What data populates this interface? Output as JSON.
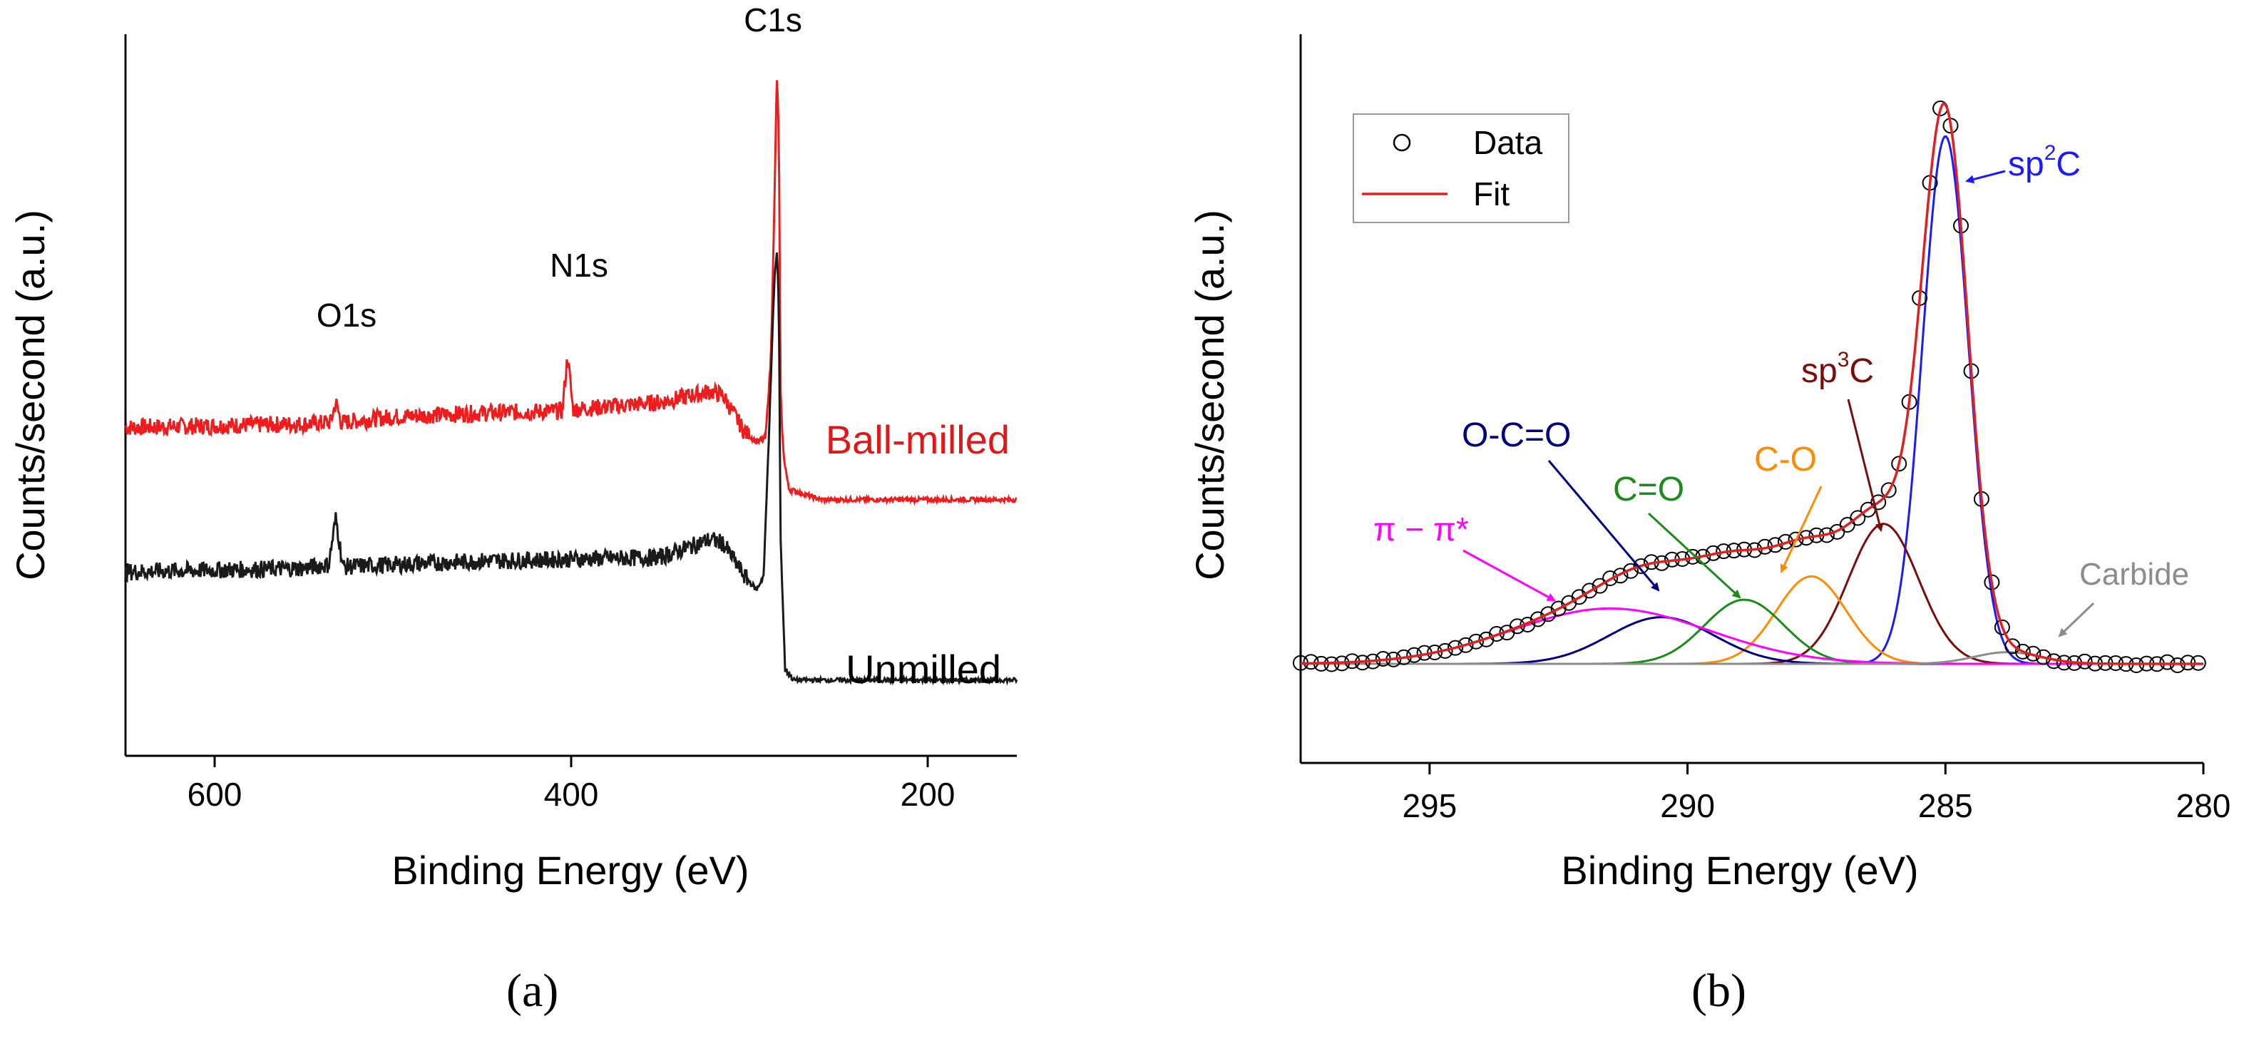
{
  "panels": {
    "a": {
      "label": "(a)",
      "xlabel": "Binding Energy (eV)",
      "ylabel": "Counts/second (a.u.)",
      "xticks": [
        "600",
        "400",
        "200"
      ],
      "peak_labels": [
        "O1s",
        "N1s",
        "C1s"
      ],
      "series_labels": [
        "Ball-milled",
        "Unmilled"
      ]
    },
    "b": {
      "label": "(b)",
      "xlabel": "Binding Energy (eV)",
      "ylabel": "Counts/second (a.u.)",
      "xticks": [
        "295",
        "290",
        "285",
        "280"
      ],
      "legend": [
        "Data",
        "Fit"
      ],
      "component_labels": {
        "sp2": "sp",
        "sp2_sup": "2",
        "sp2_tail": "C",
        "sp3": "sp",
        "sp3_sup": "3",
        "sp3_tail": "C",
        "oco": "O-C=O",
        "co2": "C=O",
        "co": "C-O",
        "pi": "π − π*",
        "carbide": "Carbide"
      }
    }
  },
  "chart_data": [
    {
      "type": "line",
      "title": "",
      "xlabel": "Binding Energy (eV)",
      "ylabel": "Counts/second (a.u.)",
      "xlim": [
        650,
        150
      ],
      "ylim": [
        0,
        1
      ],
      "xticks": [
        600,
        400,
        200
      ],
      "grid": false,
      "series": [
        {
          "name": "Ball-milled",
          "color": "#ee1c1c",
          "points": [
            [
              650,
              0.455
            ],
            [
              550,
              0.46
            ],
            [
              535,
              0.462
            ],
            [
              532,
              0.49
            ],
            [
              529,
              0.462
            ],
            [
              500,
              0.47
            ],
            [
              450,
              0.475
            ],
            [
              405,
              0.478
            ],
            [
              402,
              0.555
            ],
            [
              399,
              0.48
            ],
            [
              350,
              0.49
            ],
            [
              322,
              0.505
            ],
            [
              315,
              0.5
            ],
            [
              303,
              0.45
            ],
            [
              296,
              0.435
            ],
            [
              291,
              0.44
            ],
            [
              288,
              0.55
            ],
            [
              286,
              0.76
            ],
            [
              285,
              0.9
            ],
            [
              284.5,
              0.94
            ],
            [
              283.5,
              0.86
            ],
            [
              282.5,
              0.5
            ],
            [
              281,
              0.42
            ],
            [
              278,
              0.37
            ],
            [
              260,
              0.355
            ],
            [
              200,
              0.355
            ],
            [
              150,
              0.355
            ]
          ]
        },
        {
          "name": "Unmilled",
          "color": "#1a1a1a",
          "points": [
            [
              650,
              0.255
            ],
            [
              550,
              0.26
            ],
            [
              536,
              0.265
            ],
            [
              532,
              0.33
            ],
            [
              528,
              0.262
            ],
            [
              450,
              0.27
            ],
            [
              350,
              0.275
            ],
            [
              322,
              0.3
            ],
            [
              315,
              0.295
            ],
            [
              303,
              0.25
            ],
            [
              296,
              0.23
            ],
            [
              292,
              0.25
            ],
            [
              289,
              0.45
            ],
            [
              286,
              0.66
            ],
            [
              284.5,
              0.7
            ],
            [
              283.5,
              0.62
            ],
            [
              282.5,
              0.3
            ],
            [
              280,
              0.12
            ],
            [
              275,
              0.105
            ],
            [
              200,
              0.105
            ],
            [
              150,
              0.105
            ]
          ]
        }
      ],
      "annotations": [
        {
          "text": "O1s",
          "x": 532,
          "y": 0.5
        },
        {
          "text": "N1s",
          "x": 400,
          "y": 0.57
        },
        {
          "text": "C1s",
          "x": 285,
          "y": 0.95
        },
        {
          "text": "Ball-milled",
          "x": 265,
          "y": 0.39
        },
        {
          "text": "Unmilled",
          "x": 265,
          "y": 0.15
        }
      ]
    },
    {
      "type": "line",
      "title": "",
      "xlabel": "Binding Energy (eV)",
      "ylabel": "Counts/second (a.u.)",
      "xlim": [
        297.5,
        280
      ],
      "ylim": [
        -0.15,
        1.1
      ],
      "xticks": [
        295,
        290,
        285,
        280
      ],
      "grid": false,
      "legend_position": "top-left",
      "series": [
        {
          "name": "Data",
          "color": "#000000",
          "marker": "circle",
          "x_range": [
            297.5,
            280
          ],
          "step": 0.2
        },
        {
          "name": "Fit",
          "color": "#e02020",
          "sum_of_components": true
        },
        {
          "name": "sp2C",
          "color": "#1a1aff",
          "center": 285.0,
          "height": 0.905,
          "fwhm": 1.05
        },
        {
          "name": "sp3C",
          "color": "#7a0c0c",
          "center": 286.2,
          "height": 0.24,
          "fwhm": 1.6
        },
        {
          "name": "C-O",
          "color": "#ff8c00",
          "center": 287.6,
          "height": 0.15,
          "fwhm": 1.6
        },
        {
          "name": "C=O",
          "color": "#1a8c1a",
          "center": 288.9,
          "height": 0.11,
          "fwhm": 1.8
        },
        {
          "name": "O-C=O",
          "color": "#000080",
          "center": 290.5,
          "height": 0.08,
          "fwhm": 2.4
        },
        {
          "name": "π−π*",
          "color": "#ff00ff",
          "center": 291.5,
          "height": 0.095,
          "fwhm": 4.5
        },
        {
          "name": "Carbide",
          "color": "#8c8c8c",
          "center": 283.8,
          "height": 0.02,
          "fwhm": 1.5
        }
      ],
      "baseline": 0.02
    }
  ]
}
